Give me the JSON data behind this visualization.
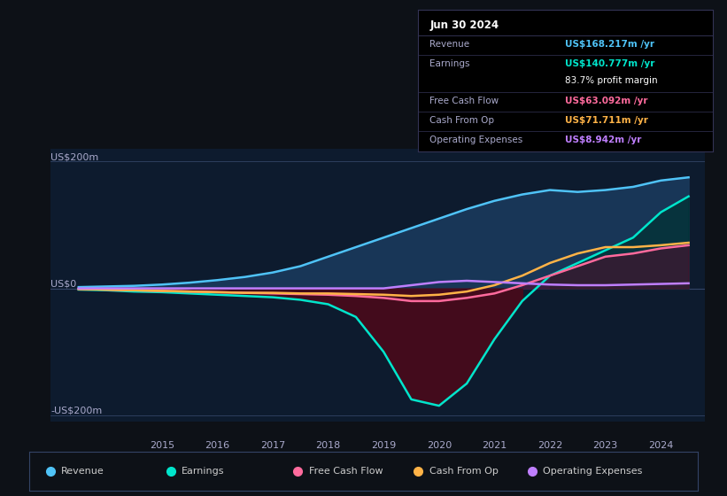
{
  "bg_color": "#0d1117",
  "plot_bg_color": "#0d1b2e",
  "ylabel_us200": "US$200m",
  "ylabel_us0": "US$0",
  "ylabel_usneg200": "-US$200m",
  "x_ticks": [
    2015,
    2016,
    2017,
    2018,
    2019,
    2020,
    2021,
    2022,
    2023,
    2024
  ],
  "ylim": [
    -210,
    220
  ],
  "xlim": [
    2013.0,
    2024.8
  ],
  "info_box": {
    "date": "Jun 30 2024",
    "revenue_label": "Revenue",
    "revenue_value": "US$168.217m",
    "revenue_color": "#4fc3f7",
    "earnings_label": "Earnings",
    "earnings_value": "US$140.777m",
    "earnings_color": "#00e5cc",
    "profit_margin": "83.7% profit margin",
    "profit_margin_color": "#ffffff",
    "fcf_label": "Free Cash Flow",
    "fcf_value": "US$63.092m",
    "fcf_color": "#ff6b9d",
    "cashop_label": "Cash From Op",
    "cashop_value": "US$71.711m",
    "cashop_color": "#ffb347",
    "opex_label": "Operating Expenses",
    "opex_value": "US$8.942m",
    "opex_color": "#bf7fff"
  },
  "legend": [
    {
      "label": "Revenue",
      "color": "#4fc3f7"
    },
    {
      "label": "Earnings",
      "color": "#00e5cc"
    },
    {
      "label": "Free Cash Flow",
      "color": "#ff6b9d"
    },
    {
      "label": "Cash From Op",
      "color": "#ffb347"
    },
    {
      "label": "Operating Expenses",
      "color": "#bf7fff"
    }
  ],
  "revenue": {
    "color": "#4fc3f7",
    "x": [
      2013.5,
      2014.0,
      2014.5,
      2015.0,
      2015.5,
      2016.0,
      2016.5,
      2017.0,
      2017.5,
      2018.0,
      2018.5,
      2019.0,
      2019.5,
      2020.0,
      2020.5,
      2021.0,
      2021.5,
      2022.0,
      2022.5,
      2023.0,
      2023.5,
      2024.0,
      2024.5
    ],
    "y": [
      2,
      3,
      4,
      6,
      9,
      13,
      18,
      25,
      35,
      50,
      65,
      80,
      95,
      110,
      125,
      138,
      148,
      155,
      152,
      155,
      160,
      170,
      175
    ]
  },
  "earnings": {
    "color": "#00e5cc",
    "x": [
      2013.5,
      2014.0,
      2014.5,
      2015.0,
      2015.5,
      2016.0,
      2016.5,
      2017.0,
      2017.5,
      2018.0,
      2018.5,
      2019.0,
      2019.5,
      2020.0,
      2020.5,
      2021.0,
      2021.5,
      2022.0,
      2022.5,
      2023.0,
      2023.5,
      2024.0,
      2024.5
    ],
    "y": [
      -2,
      -3,
      -5,
      -6,
      -8,
      -10,
      -12,
      -14,
      -18,
      -25,
      -45,
      -100,
      -175,
      -185,
      -150,
      -80,
      -20,
      20,
      40,
      60,
      80,
      120,
      145
    ]
  },
  "fcf": {
    "color": "#ff6b9d",
    "x": [
      2013.5,
      2014.0,
      2014.5,
      2015.0,
      2015.5,
      2016.0,
      2016.5,
      2017.0,
      2017.5,
      2018.0,
      2018.5,
      2019.0,
      2019.5,
      2020.0,
      2020.5,
      2021.0,
      2021.5,
      2022.0,
      2022.5,
      2023.0,
      2023.5,
      2024.0,
      2024.5
    ],
    "y": [
      -1,
      -2,
      -3,
      -4,
      -5,
      -6,
      -7,
      -8,
      -9,
      -10,
      -12,
      -15,
      -20,
      -20,
      -15,
      -8,
      5,
      20,
      35,
      50,
      55,
      63,
      68
    ]
  },
  "cashop": {
    "color": "#ffb347",
    "x": [
      2013.5,
      2014.0,
      2014.5,
      2015.0,
      2015.5,
      2016.0,
      2016.5,
      2017.0,
      2017.5,
      2018.0,
      2018.5,
      2019.0,
      2019.5,
      2020.0,
      2020.5,
      2021.0,
      2021.5,
      2022.0,
      2022.5,
      2023.0,
      2023.5,
      2024.0,
      2024.5
    ],
    "y": [
      -1,
      -2,
      -3,
      -4,
      -5,
      -6,
      -7,
      -7,
      -8,
      -8,
      -9,
      -10,
      -12,
      -10,
      -5,
      5,
      20,
      40,
      55,
      65,
      65,
      68,
      72
    ]
  },
  "opex": {
    "color": "#bf7fff",
    "x": [
      2013.5,
      2014.0,
      2014.5,
      2015.0,
      2015.5,
      2016.0,
      2016.5,
      2017.0,
      2017.5,
      2018.0,
      2018.5,
      2019.0,
      2019.5,
      2020.0,
      2020.5,
      2021.0,
      2021.5,
      2022.0,
      2022.5,
      2023.0,
      2023.5,
      2024.0,
      2024.5
    ],
    "y": [
      0,
      0,
      0,
      0,
      0,
      0,
      0,
      0,
      0,
      0,
      0,
      0,
      5,
      10,
      12,
      10,
      8,
      6,
      5,
      5,
      6,
      7,
      8
    ]
  }
}
